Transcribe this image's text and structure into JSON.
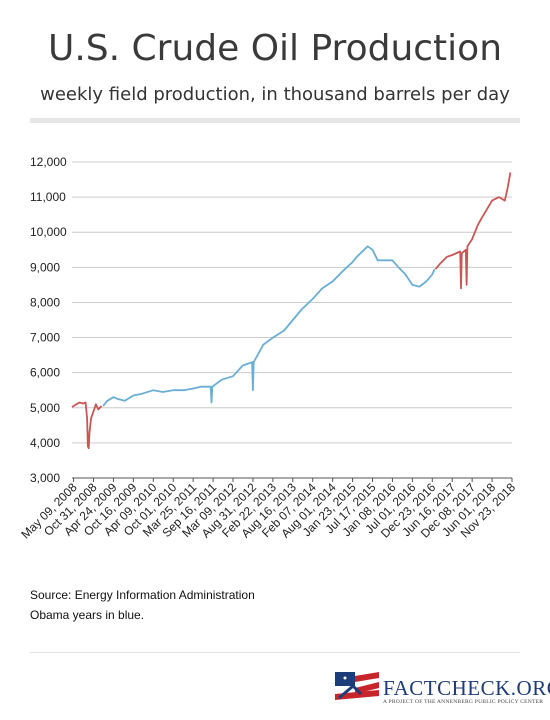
{
  "header": {
    "title": "U.S. Crude Oil Production",
    "subtitle": "weekly field production, in thousand barrels per day"
  },
  "footer": {
    "source": "Source: Energy Information Administration",
    "note": "Obama years in blue."
  },
  "logo": {
    "name": "FactCheck.org",
    "tagline": "A Project of the Annenberg Public Policy Center"
  },
  "colors": {
    "obama": "#6aaed6",
    "other": "#cc5555",
    "grid": "#cccccc",
    "axis": "#555555"
  },
  "chart_data": {
    "type": "line",
    "title": "U.S. Crude Oil Production",
    "ylabel": "",
    "xlabel": "",
    "ylim": [
      3000,
      12000
    ],
    "yticks": [
      3000,
      4000,
      5000,
      6000,
      7000,
      8000,
      9000,
      10000,
      11000,
      12000
    ],
    "grid": true,
    "xticks": [
      "May 09, 2008",
      "Oct 31, 2008",
      "Apr 24, 2009",
      "Oct 16, 2009",
      "Apr 09, 2010",
      "Oct 01, 2010",
      "Mar 25, 2011",
      "Sep 16, 2011",
      "Mar 09, 2012",
      "Aug 31, 2012",
      "Feb 22, 2013",
      "Aug 16, 2013",
      "Feb 07, 2014",
      "Aug 01, 2014",
      "Jan 23, 2015",
      "Jul 17, 2015",
      "Jan 08, 2016",
      "Jul 01, 2016",
      "Dec 23, 2016",
      "Jun 16, 2017",
      "Dec 08, 2017",
      "Jun 01, 2018",
      "Nov 23, 2018"
    ],
    "series": [
      {
        "color": "#cc5555",
        "points": [
          [
            "2008-04-25",
            5020
          ],
          [
            "2008-05-09",
            5050
          ],
          [
            "2008-06-01",
            5100
          ],
          [
            "2008-07-01",
            5150
          ],
          [
            "2008-08-01",
            5120
          ],
          [
            "2008-08-22",
            5150
          ],
          [
            "2008-09-05",
            4700
          ],
          [
            "2008-09-12",
            3900
          ],
          [
            "2008-09-19",
            3850
          ],
          [
            "2008-09-26",
            4300
          ],
          [
            "2008-10-10",
            4700
          ],
          [
            "2008-10-31",
            4900
          ],
          [
            "2008-11-21",
            5100
          ],
          [
            "2008-12-12",
            4950
          ],
          [
            "2009-01-09",
            5050
          ]
        ]
      },
      {
        "color": "#6aaed6",
        "points": [
          [
            "2009-01-23",
            5050
          ],
          [
            "2009-03-01",
            5200
          ],
          [
            "2009-04-24",
            5300
          ],
          [
            "2009-06-01",
            5250
          ],
          [
            "2009-08-01",
            5200
          ],
          [
            "2009-10-16",
            5350
          ],
          [
            "2010-01-01",
            5400
          ],
          [
            "2010-04-09",
            5500
          ],
          [
            "2010-07-01",
            5450
          ],
          [
            "2010-10-01",
            5500
          ],
          [
            "2011-01-01",
            5500
          ],
          [
            "2011-03-25",
            5550
          ],
          [
            "2011-06-01",
            5600
          ],
          [
            "2011-08-26",
            5600
          ],
          [
            "2011-09-02",
            5150
          ],
          [
            "2011-09-09",
            5600
          ],
          [
            "2011-12-01",
            5800
          ],
          [
            "2012-03-09",
            5900
          ],
          [
            "2012-06-01",
            6200
          ],
          [
            "2012-08-24",
            6300
          ],
          [
            "2012-08-31",
            5500
          ],
          [
            "2012-09-07",
            6300
          ],
          [
            "2012-12-01",
            6800
          ],
          [
            "2013-02-22",
            7000
          ],
          [
            "2013-06-01",
            7200
          ],
          [
            "2013-08-16",
            7500
          ],
          [
            "2013-11-01",
            7800
          ],
          [
            "2014-02-07",
            8100
          ],
          [
            "2014-05-01",
            8400
          ],
          [
            "2014-08-01",
            8600
          ],
          [
            "2014-11-01",
            8900
          ],
          [
            "2015-01-23",
            9150
          ],
          [
            "2015-03-01",
            9300
          ],
          [
            "2015-06-05",
            9600
          ],
          [
            "2015-07-17",
            9500
          ],
          [
            "2015-09-01",
            9200
          ],
          [
            "2015-12-01",
            9200
          ],
          [
            "2016-01-08",
            9200
          ],
          [
            "2016-03-01",
            9000
          ],
          [
            "2016-05-01",
            8800
          ],
          [
            "2016-07-01",
            8500
          ],
          [
            "2016-09-01",
            8450
          ],
          [
            "2016-11-01",
            8600
          ],
          [
            "2016-12-23",
            8800
          ],
          [
            "2017-01-13",
            8950
          ]
        ]
      },
      {
        "color": "#cc5555",
        "points": [
          [
            "2017-01-20",
            8950
          ],
          [
            "2017-03-01",
            9100
          ],
          [
            "2017-05-01",
            9300
          ],
          [
            "2017-06-16",
            9350
          ],
          [
            "2017-08-25",
            9450
          ],
          [
            "2017-09-01",
            8400
          ],
          [
            "2017-09-08",
            9400
          ],
          [
            "2017-10-13",
            9500
          ],
          [
            "2017-10-20",
            8500
          ],
          [
            "2017-10-27",
            9600
          ],
          [
            "2017-12-08",
            9800
          ],
          [
            "2018-01-26",
            10200
          ],
          [
            "2018-03-01",
            10400
          ],
          [
            "2018-06-01",
            10900
          ],
          [
            "2018-08-01",
            11000
          ],
          [
            "2018-09-21",
            10900
          ],
          [
            "2018-10-12",
            11200
          ],
          [
            "2018-11-09",
            11700
          ]
        ]
      }
    ]
  }
}
